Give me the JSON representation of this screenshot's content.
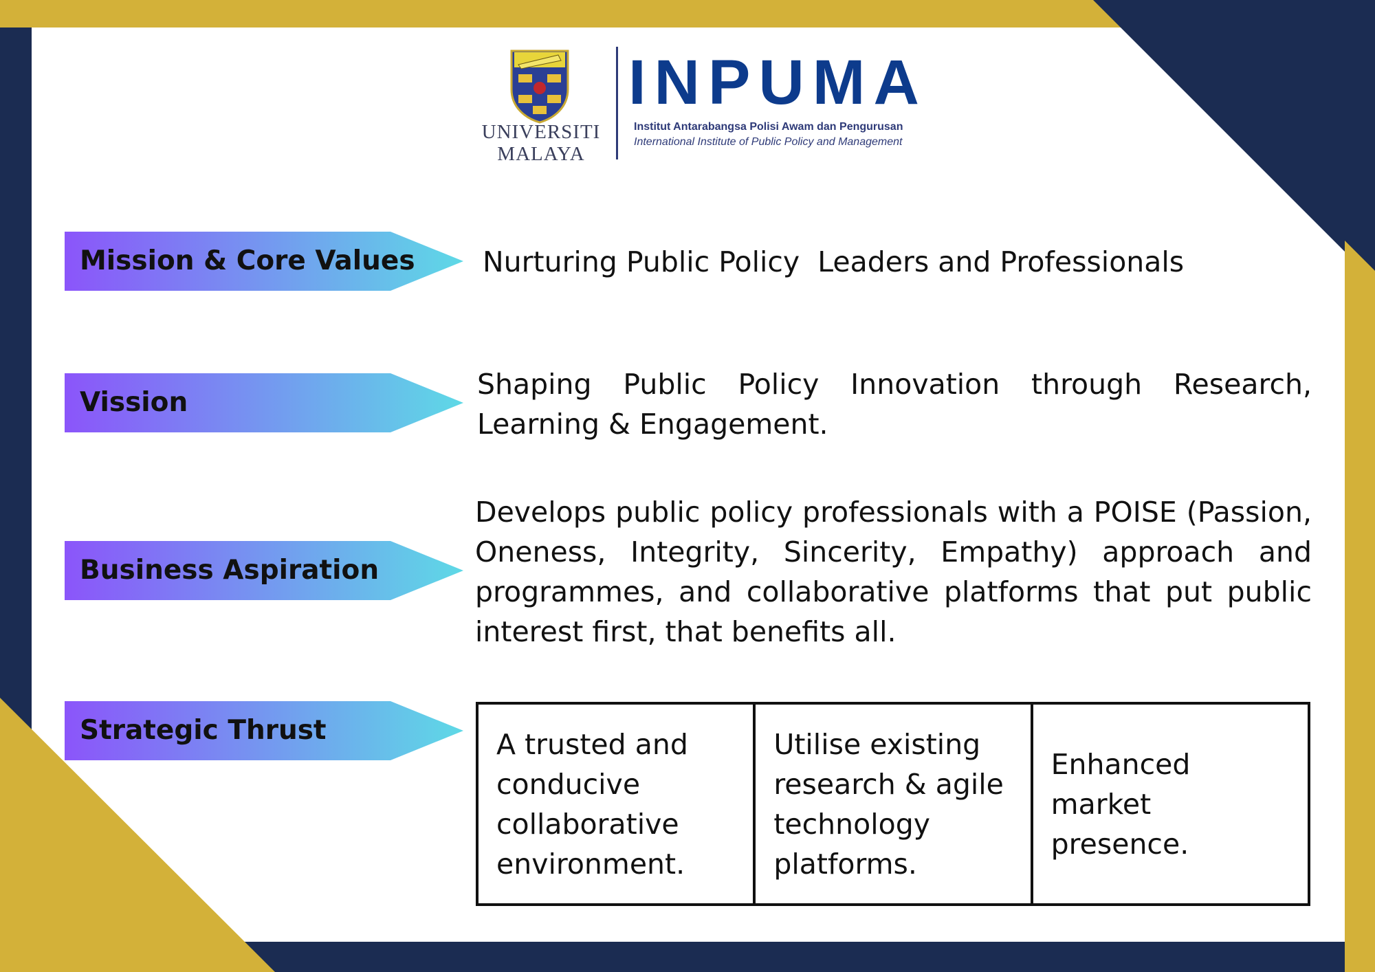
{
  "colors": {
    "navy": "#1b2c52",
    "gold": "#d3b139",
    "tag_gradient_start": "#8b55fa",
    "tag_gradient_end": "#5ed9e6",
    "brand_blue": "#0d3b8c"
  },
  "logo": {
    "university_line1": "UNIVERSITI",
    "university_line2": "MALAYA",
    "institute_acronym": "INPUMA",
    "institute_name_ms": "Institut Antarabangsa Polisi Awam dan Pengurusan",
    "institute_name_en": "International Institute of Public Policy and Management"
  },
  "sections": {
    "mission": {
      "label": "Mission & Core Values",
      "text": "Nurturing Public Policy  Leaders and Professionals"
    },
    "vision": {
      "label": "Vission",
      "text": "Shaping Public Policy Innovation through Research, Learning & Engagement."
    },
    "aspiration": {
      "label": "Business Aspiration",
      "text": "Develops public policy professionals with a POISE (Passion, Oneness, Integrity, Sincerity, Empathy) approach and programmes, and collaborative platforms that put public interest first, that benefits all."
    },
    "strategic": {
      "label": "Strategic Thrust",
      "thrusts": [
        "A trusted and conducive collaborative environment.",
        "Utilise existing research & agile technology platforms.",
        "Enhanced market presence."
      ]
    }
  }
}
